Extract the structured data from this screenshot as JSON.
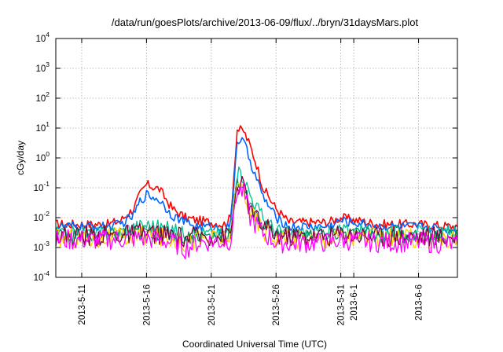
{
  "chart_data": {
    "type": "line",
    "title": "/data/run/goesPlots/archive/2013-06-09/flux/../bryn/31daysMars.plot",
    "xlabel": "Coordinated Universal Time (UTC)",
    "ylabel": "cGy/day",
    "yscale": "log",
    "ylim": [
      0.0001,
      10000
    ],
    "xlim": [
      "2013-05-09",
      "2013-06-09"
    ],
    "grid": true,
    "y_ticks": [
      {
        "value": 0.0001,
        "base": "10",
        "exp": "-4"
      },
      {
        "value": 0.001,
        "base": "10",
        "exp": "-3"
      },
      {
        "value": 0.01,
        "base": "10",
        "exp": "-2"
      },
      {
        "value": 0.1,
        "base": "10",
        "exp": "-1"
      },
      {
        "value": 1,
        "base": "10",
        "exp": "0"
      },
      {
        "value": 10,
        "base": "10",
        "exp": "1"
      },
      {
        "value": 100,
        "base": "10",
        "exp": "2"
      },
      {
        "value": 1000,
        "base": "10",
        "exp": "3"
      },
      {
        "value": 10000,
        "base": "10",
        "exp": "4"
      }
    ],
    "x_ticks": [
      {
        "date": "2013-05-11",
        "label": "2013-5-11"
      },
      {
        "date": "2013-05-16",
        "label": "2013-5-16"
      },
      {
        "date": "2013-05-21",
        "label": "2013-5-21"
      },
      {
        "date": "2013-05-26",
        "label": "2013-5-26"
      },
      {
        "date": "2013-05-31",
        "label": "2013-5-31"
      },
      {
        "date": "2013-06-01",
        "label": "2013-6-1"
      },
      {
        "date": "2013-06-06",
        "label": "2013-6-6"
      }
    ],
    "series": [
      {
        "color": "#ff0000",
        "x": [
          "2013-05-09",
          "2013-05-13",
          "2013-05-14",
          "2013-05-15",
          "2013-05-15T12",
          "2013-05-16",
          "2013-05-17",
          "2013-05-18",
          "2013-05-19",
          "2013-05-20",
          "2013-05-21",
          "2013-05-22",
          "2013-05-22T12",
          "2013-05-23",
          "2013-05-23T12",
          "2013-05-24",
          "2013-05-24T12",
          "2013-05-25",
          "2013-05-26",
          "2013-05-27",
          "2013-05-30",
          "2013-05-31",
          "2013-06-03",
          "2013-06-06",
          "2013-06-09"
        ],
        "values": [
          0.006,
          0.006,
          0.008,
          0.02,
          0.06,
          0.13,
          0.09,
          0.02,
          0.01,
          0.008,
          0.007,
          0.006,
          0.01,
          9,
          8,
          2.5,
          0.6,
          0.1,
          0.02,
          0.007,
          0.007,
          0.01,
          0.006,
          0.006,
          0.005
        ]
      },
      {
        "color": "#0066ff",
        "x": [
          "2013-05-09",
          "2013-05-13",
          "2013-05-14",
          "2013-05-15",
          "2013-05-15T12",
          "2013-05-16",
          "2013-05-17",
          "2013-05-18",
          "2013-05-19",
          "2013-05-20",
          "2013-05-21",
          "2013-05-22",
          "2013-05-22T12",
          "2013-05-23",
          "2013-05-23T12",
          "2013-05-24",
          "2013-05-24T12",
          "2013-05-25",
          "2013-05-26",
          "2013-05-27",
          "2013-05-30",
          "2013-05-31",
          "2013-06-03",
          "2013-06-06",
          "2013-06-09"
        ],
        "values": [
          0.005,
          0.005,
          0.006,
          0.012,
          0.035,
          0.06,
          0.04,
          0.012,
          0.007,
          0.005,
          0.005,
          0.004,
          0.006,
          4,
          3.5,
          0.8,
          0.2,
          0.05,
          0.01,
          0.005,
          0.005,
          0.008,
          0.005,
          0.005,
          0.004
        ]
      },
      {
        "color": "#00c090",
        "x": [
          "2013-05-09",
          "2013-05-13",
          "2013-05-14",
          "2013-05-15",
          "2013-05-16",
          "2013-05-17",
          "2013-05-18",
          "2013-05-19",
          "2013-05-20",
          "2013-05-21",
          "2013-05-22",
          "2013-05-22T12",
          "2013-05-23",
          "2013-05-23T12",
          "2013-05-24",
          "2013-05-25",
          "2013-05-26",
          "2013-05-27",
          "2013-05-30",
          "2013-05-31",
          "2013-06-03",
          "2013-06-06",
          "2013-06-09"
        ],
        "values": [
          0.003,
          0.003,
          0.0035,
          0.005,
          0.006,
          0.005,
          0.004,
          0.003,
          0.003,
          0.003,
          0.003,
          0.004,
          0.3,
          0.25,
          0.06,
          0.01,
          0.004,
          0.003,
          0.003,
          0.004,
          0.003,
          0.003,
          0.003
        ]
      },
      {
        "color": "#009060",
        "x": [
          "2013-05-09",
          "2013-05-13",
          "2013-05-15",
          "2013-05-16",
          "2013-05-17",
          "2013-05-18",
          "2013-05-19",
          "2013-05-20",
          "2013-05-21",
          "2013-05-22",
          "2013-05-22T12",
          "2013-05-23",
          "2013-05-23T12",
          "2013-05-24",
          "2013-05-25",
          "2013-05-26",
          "2013-05-27",
          "2013-05-30",
          "2013-05-31",
          "2013-06-03",
          "2013-06-06",
          "2013-06-09"
        ],
        "values": [
          0.0025,
          0.0025,
          0.003,
          0.0035,
          0.003,
          0.0025,
          0.0022,
          0.0025,
          0.0025,
          0.0025,
          0.003,
          0.15,
          0.12,
          0.02,
          0.006,
          0.003,
          0.0025,
          0.0025,
          0.003,
          0.0025,
          0.0025,
          0.0022
        ]
      },
      {
        "color": "#ffd000",
        "x": [
          "2013-05-09",
          "2013-05-13",
          "2013-05-15",
          "2013-05-16",
          "2013-05-17",
          "2013-05-18",
          "2013-05-19",
          "2013-05-20",
          "2013-05-21",
          "2013-05-22",
          "2013-05-22T12",
          "2013-05-23",
          "2013-05-23T12",
          "2013-05-24",
          "2013-05-25",
          "2013-05-26",
          "2013-05-27",
          "2013-05-30",
          "2013-05-31",
          "2013-06-03",
          "2013-06-06",
          "2013-06-09"
        ],
        "values": [
          0.002,
          0.002,
          0.0023,
          0.0025,
          0.0023,
          0.002,
          0.0015,
          0.002,
          0.002,
          0.002,
          0.0025,
          0.12,
          0.1,
          0.015,
          0.004,
          0.0022,
          0.002,
          0.002,
          0.0025,
          0.002,
          0.002,
          0.0018
        ]
      },
      {
        "color": "#800040",
        "x": [
          "2013-05-09",
          "2013-05-13",
          "2013-05-15",
          "2013-05-16",
          "2013-05-17",
          "2013-05-18",
          "2013-05-19",
          "2013-05-20",
          "2013-05-21",
          "2013-05-22",
          "2013-05-22T12",
          "2013-05-23",
          "2013-05-23T12",
          "2013-05-24",
          "2013-05-25",
          "2013-05-26",
          "2013-05-27",
          "2013-05-30",
          "2013-05-31",
          "2013-06-03",
          "2013-06-06",
          "2013-06-09"
        ],
        "values": [
          0.0025,
          0.0025,
          0.0028,
          0.003,
          0.0028,
          0.0024,
          0.002,
          0.0024,
          0.0024,
          0.0024,
          0.003,
          0.13,
          0.11,
          0.018,
          0.005,
          0.0027,
          0.0024,
          0.0024,
          0.003,
          0.0024,
          0.0024,
          0.0022
        ]
      },
      {
        "color": "#ff00ff",
        "x": [
          "2013-05-09",
          "2013-05-13",
          "2013-05-15",
          "2013-05-16",
          "2013-05-17",
          "2013-05-18",
          "2013-05-19",
          "2013-05-20",
          "2013-05-21",
          "2013-05-22",
          "2013-05-22T12",
          "2013-05-23",
          "2013-05-23T12",
          "2013-05-24",
          "2013-05-25",
          "2013-05-26",
          "2013-05-27",
          "2013-05-30",
          "2013-05-31",
          "2013-06-03",
          "2013-06-06",
          "2013-06-09"
        ],
        "values": [
          0.0018,
          0.0018,
          0.002,
          0.002,
          0.0018,
          0.0015,
          0.0009,
          0.0015,
          0.0016,
          0.0016,
          0.0018,
          0.09,
          0.07,
          0.01,
          0.003,
          0.0015,
          0.0014,
          0.0015,
          0.0018,
          0.0015,
          0.0015,
          0.0013
        ]
      }
    ]
  }
}
